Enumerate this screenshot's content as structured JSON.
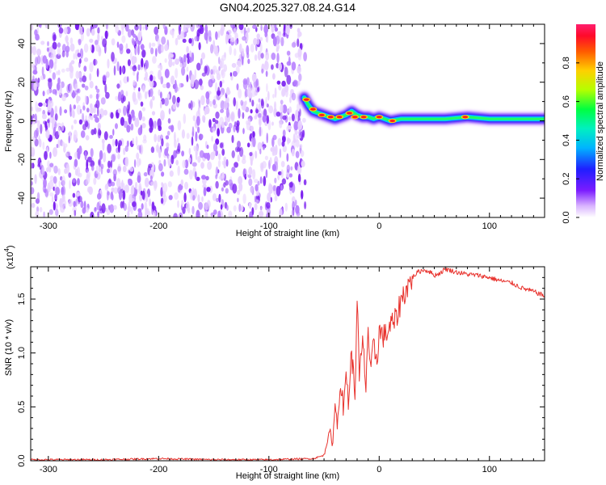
{
  "title": "GN04.2025.327.08.24.G14",
  "colors": {
    "snr_line": "#e8322d",
    "speckle_light": "#e8d2ff",
    "speckle_mid": "#b57cff",
    "speckle_dark": "#7a1ff0"
  },
  "chart_data": [
    {
      "type": "heatmap",
      "title": "GN04.2025.327.08.24.G14",
      "xlabel": "Height of straight line (km)",
      "ylabel": "Frequency (Hz)",
      "xlim": [
        -316,
        150
      ],
      "ylim": [
        -50,
        50
      ],
      "xticks": [
        -300,
        -200,
        -100,
        0,
        100
      ],
      "yticks": [
        -40,
        -20,
        0,
        20,
        40
      ],
      "colorbar": {
        "label": "Normalized spectral amplitude",
        "range": [
          0,
          1
        ],
        "ticks": [
          "0.0",
          "0.2",
          "0.4",
          "0.6",
          "0.8"
        ],
        "tick_values": [
          0,
          0.2,
          0.4,
          0.6,
          0.8
        ]
      },
      "noise_region_x": [
        -316,
        -67
      ],
      "signal_trace": {
        "x": [
          -68,
          -64,
          -60,
          -55,
          -50,
          -45,
          -40,
          -35,
          -30,
          -25,
          -20,
          -15,
          -10,
          -5,
          0,
          10,
          20,
          40,
          60,
          80,
          100,
          120,
          150
        ],
        "frequency": [
          12,
          8,
          5,
          4,
          3,
          2,
          1,
          2,
          3,
          5,
          3,
          2,
          2,
          1,
          2,
          0,
          1,
          1,
          1,
          2,
          1,
          1,
          1
        ],
        "peaks": [
          {
            "x": -66,
            "f": 11
          },
          {
            "x": -60,
            "f": 6
          },
          {
            "x": -52,
            "f": 3
          },
          {
            "x": -44,
            "f": 2
          },
          {
            "x": -36,
            "f": 2
          },
          {
            "x": -27,
            "f": 4
          },
          {
            "x": -22,
            "f": 2
          },
          {
            "x": -14,
            "f": 2
          },
          {
            "x": 0,
            "f": 2
          },
          {
            "x": 12,
            "f": 0
          },
          {
            "x": 78,
            "f": 2
          }
        ]
      }
    },
    {
      "type": "line",
      "xlabel": "Height of straight line (km)",
      "ylabel": "SNR (10 * v/v)",
      "y_multiplier": "(x10",
      "y_multiplier_exp": "4",
      "y_multiplier_close": ")",
      "xlim": [
        -316,
        150
      ],
      "ylim": [
        0,
        1.8
      ],
      "xticks": [
        -300,
        -200,
        -100,
        0,
        100
      ],
      "yticks": [
        0,
        0.5,
        1.0,
        1.5
      ],
      "ytick_labels": [
        "0.0",
        "0.5",
        "1.0",
        "1.5"
      ],
      "series": [
        {
          "x": [
            -316,
            -250,
            -200,
            -150,
            -100,
            -60,
            -50,
            -45,
            -42,
            -40,
            -38,
            -35,
            -32,
            -30,
            -28,
            -25,
            -22,
            -20,
            -18,
            -15,
            -12,
            -10,
            -8,
            -5,
            -2,
            0,
            5,
            10,
            15,
            20,
            25,
            30,
            35,
            40,
            45,
            50,
            55,
            60,
            70,
            80,
            90,
            100,
            110,
            120,
            130,
            140,
            150
          ],
          "y": [
            0.01,
            0.01,
            0.02,
            0.01,
            0.01,
            0.02,
            0.05,
            0.3,
            0.1,
            0.6,
            0.3,
            0.75,
            0.45,
            0.85,
            0.55,
            1.0,
            0.6,
            1.55,
            0.75,
            1.1,
            0.7,
            1.25,
            0.8,
            1.05,
            0.95,
            1.2,
            1.15,
            1.25,
            1.3,
            1.5,
            1.6,
            1.7,
            1.75,
            1.77,
            1.76,
            1.72,
            1.74,
            1.78,
            1.75,
            1.73,
            1.72,
            1.7,
            1.67,
            1.65,
            1.6,
            1.57,
            1.53
          ]
        }
      ]
    }
  ]
}
